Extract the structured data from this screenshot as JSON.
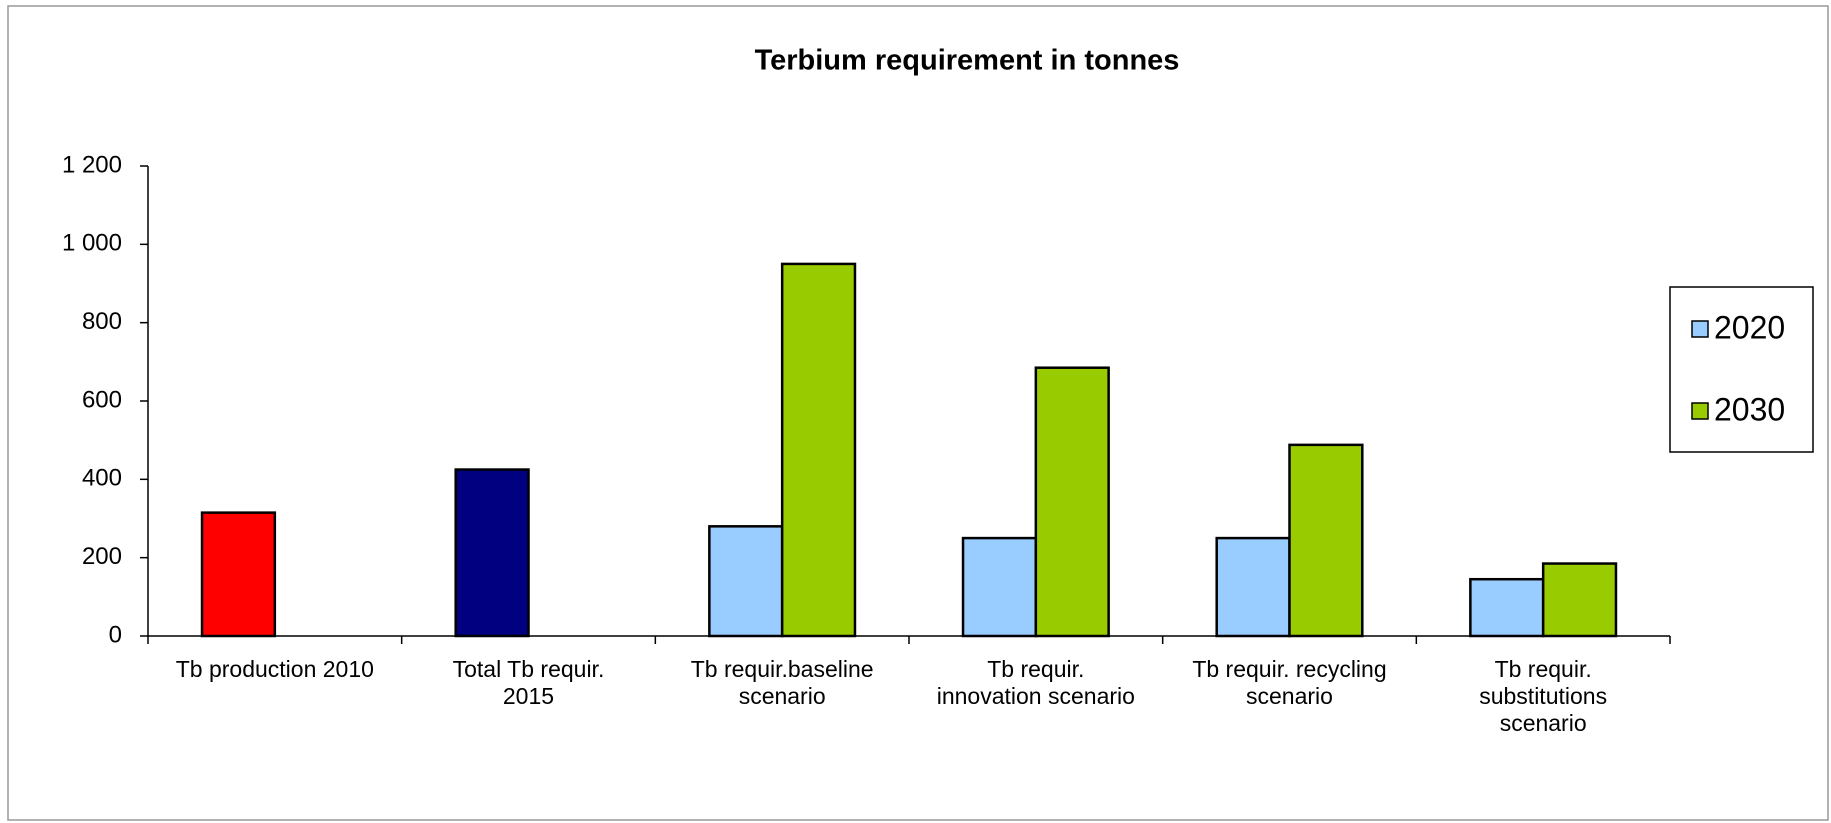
{
  "chart_data": {
    "type": "bar",
    "title": "Terbium requirement in tonnes",
    "categories": [
      "Tb production 2010",
      "Total Tb requir.\n2015",
      "Tb requir.baseline\nscenario",
      "Tb requir.\ninnovation scenario",
      "Tb requir. recycling\nscenario",
      "Tb requir.\nsubstitutions\nscenario"
    ],
    "values": [
      315,
      425,
      null,
      null,
      null,
      null
    ],
    "colors": [
      "#ff0000",
      "#000080",
      null,
      null,
      null,
      null
    ],
    "series": [
      {
        "name": "2020",
        "color": "#99ccff",
        "values": [
          null,
          null,
          280,
          250,
          250,
          145
        ]
      },
      {
        "name": "2030",
        "color": "#99cc00",
        "values": [
          null,
          null,
          950,
          685,
          488,
          185
        ]
      }
    ],
    "ylim": [
      0,
      1200
    ],
    "yticks": [
      0,
      200,
      400,
      600,
      800,
      {
        "value": 1000,
        "label": "1 000"
      },
      {
        "value": 1200,
        "label": "1 200"
      }
    ],
    "grid": false,
    "legend": "right"
  }
}
